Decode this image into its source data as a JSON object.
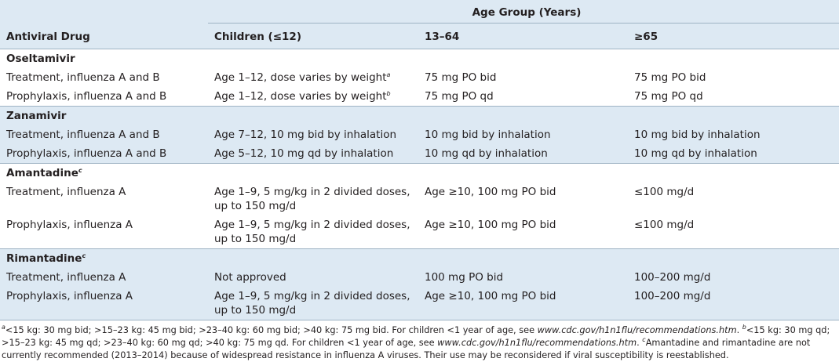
{
  "table": {
    "group_header": "Age Group (Years)",
    "columns": [
      "Antiviral Drug",
      "Children (≤12)",
      "13–64",
      "≥65"
    ],
    "sections": [
      {
        "drug": "Oseltamivir",
        "rows": [
          [
            "Treatment, influenza A and B",
            {
              "text": "Age 1–12, dose varies by weight",
              "sup": "a"
            },
            "75 mg PO bid",
            "75 mg PO bid"
          ],
          [
            "Prophylaxis, influenza A and B",
            {
              "text": "Age 1–12, dose varies by weight",
              "sup": "b"
            },
            "75 mg PO qd",
            "75 mg PO qd"
          ]
        ]
      },
      {
        "drug": "Zanamivir",
        "rows": [
          [
            "Treatment, influenza A and B",
            "Age 7–12, 10 mg bid by inhalation",
            "10 mg bid by inhalation",
            "10 mg bid by inhalation"
          ],
          [
            "Prophylaxis, influenza A and B",
            "Age 5–12, 10 mg qd by inhalation",
            "10 mg qd by inhalation",
            "10 mg qd by inhalation"
          ]
        ]
      },
      {
        "drug": {
          "text": "Amantadine",
          "sup": "c"
        },
        "rows": [
          [
            "Treatment, influenza A",
            "Age 1–9, 5 mg/kg in 2 divided doses, up to 150 mg/d",
            "Age ≥10, 100 mg PO bid",
            "≤100 mg/d"
          ],
          [
            "Prophylaxis, influenza A",
            "Age 1–9, 5 mg/kg in 2 divided doses, up to 150 mg/d",
            "Age ≥10, 100 mg PO bid",
            "≤100 mg/d"
          ]
        ]
      },
      {
        "drug": {
          "text": "Rimantadine",
          "sup": "c"
        },
        "rows": [
          [
            "Treatment, influenza A",
            "Not approved",
            "100 mg PO bid",
            "100–200 mg/d"
          ],
          [
            "Prophylaxis, influenza A",
            "Age 1–9, 5 mg/kg in 2 divided doses, up to 150 mg/d",
            "Age ≥10, 100 mg PO bid",
            "100–200 mg/d"
          ]
        ]
      }
    ]
  },
  "footnotes": [
    {
      "mark": "a",
      "text": "<15 kg: 30 mg bid; >15–23 kg: 45 mg bid; >23–40 kg: 60 mg bid; >40 kg: 75 mg bid. For children <1 year of age, see ",
      "link": "www.cdc.gov/h1n1flu/recommendations.htm",
      "end": "."
    },
    {
      "mark": "b",
      "text": "<15 kg: 30 mg qd; >15–23 kg: 45 mg qd; >23–40 kg: 60 mg qd; >40 kg: 75 mg qd. For children <1 year of age, see ",
      "link": "www.cdc.gov/h1n1flu/recommendations.htm",
      "end": "."
    },
    {
      "mark": "c",
      "text": "Amantadine and rimantadine are not currently recommended (2013–2014) because of widespread resistance in influenza A viruses. Their use may be reconsidered if viral susceptibility is reestablished."
    }
  ]
}
